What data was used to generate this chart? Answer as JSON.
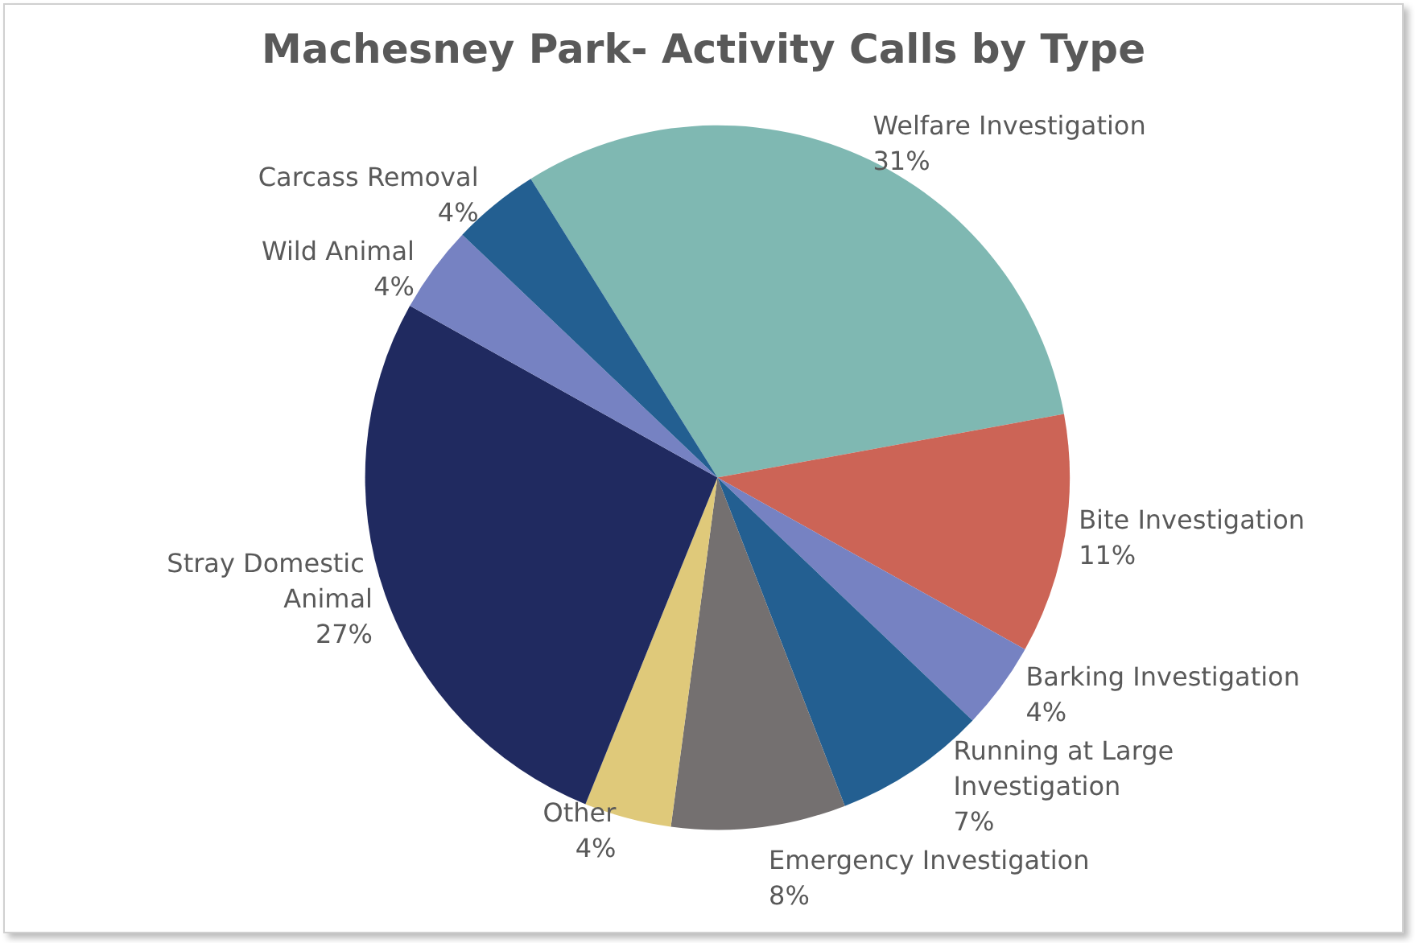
{
  "chart_data": {
    "type": "pie",
    "title": "Machesney Park- Activity Calls by Type",
    "categories": [
      "Welfare Investigation",
      "Bite Investigation",
      "Barking Investigation",
      "Running at Large Investigation",
      "Emergency Investigation",
      "Other",
      "Stray Domestic Animal",
      "Wild Animal",
      "Carcass Removal"
    ],
    "values": [
      31,
      11,
      4,
      7,
      8,
      4,
      27,
      4,
      4
    ],
    "colors": [
      "#7fb8b2",
      "#cc6456",
      "#7682c2",
      "#235f91",
      "#747070",
      "#dfc97a",
      "#202a60",
      "#7682c2",
      "#235f91"
    ],
    "value_labels": [
      "31%",
      "11%",
      "4%",
      "7%",
      "8%",
      "4%",
      "27%",
      "4%",
      "4%"
    ],
    "legend": false
  }
}
